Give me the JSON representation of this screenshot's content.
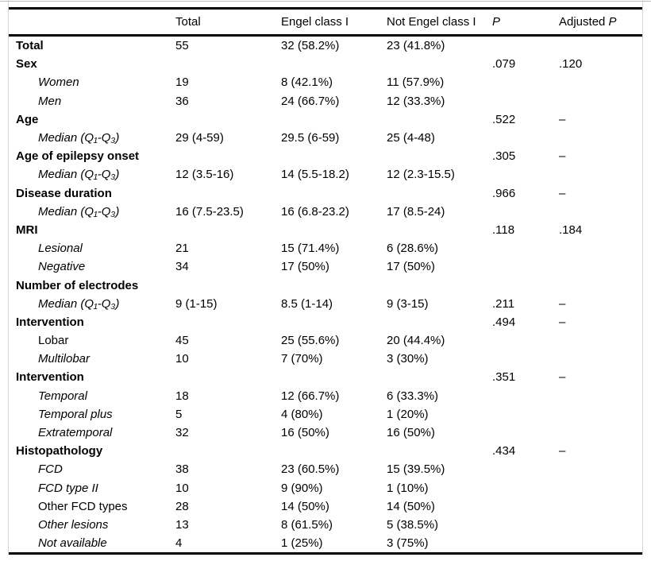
{
  "table": {
    "header": {
      "empty": "",
      "total": "Total",
      "engel": "Engel class I",
      "not_engel": "Not Engel class I",
      "p": "P",
      "adjusted_prefix": "Adjusted ",
      "adjusted_p": "P"
    },
    "rows": [
      {
        "label": "Total",
        "style": "bold",
        "total": "55",
        "engel": "32 (58.2%)",
        "not_engel": "23 (41.8%)",
        "p": "",
        "adj_p": ""
      },
      {
        "label": "Sex",
        "style": "bold",
        "total": "",
        "engel": "",
        "not_engel": "",
        "p": ".079",
        "adj_p": ".120"
      },
      {
        "label": "Women",
        "style": "italic",
        "total": "19",
        "engel": "8 (42.1%)",
        "not_engel": "11 (57.9%)",
        "p": "",
        "adj_p": ""
      },
      {
        "label": "Men",
        "style": "italic",
        "total": "36",
        "engel": "24 (66.7%)",
        "not_engel": "12 (33.3%)",
        "p": "",
        "adj_p": ""
      },
      {
        "label": "Age",
        "style": "bold",
        "total": "",
        "engel": "",
        "not_engel": "",
        "p": ".522",
        "adj_p": "–"
      },
      {
        "label": "Median (Q₁-Q₃)",
        "style": "italic",
        "total": "29 (4-59)",
        "engel": "29.5 (6-59)",
        "not_engel": "25 (4-48)",
        "p": "",
        "adj_p": ""
      },
      {
        "label": "Age of epilepsy onset",
        "style": "bold",
        "total": "",
        "engel": "",
        "not_engel": "",
        "p": ".305",
        "adj_p": "–"
      },
      {
        "label": "Median (Q₁-Q₃)",
        "style": "italic",
        "total": "12 (3.5-16)",
        "engel": "14 (5.5-18.2)",
        "not_engel": "12 (2.3-15.5)",
        "p": "",
        "adj_p": ""
      },
      {
        "label": "Disease duration",
        "style": "bold",
        "total": "",
        "engel": "",
        "not_engel": "",
        "p": ".966",
        "adj_p": "–"
      },
      {
        "label": "Median (Q₁-Q₃)",
        "style": "italic",
        "total": "16 (7.5-23.5)",
        "engel": "16 (6.8-23.2)",
        "not_engel": "17 (8.5-24)",
        "p": "",
        "adj_p": ""
      },
      {
        "label": "MRI",
        "style": "bold",
        "total": "",
        "engel": "",
        "not_engel": "",
        "p": ".118",
        "adj_p": ".184"
      },
      {
        "label": "Lesional",
        "style": "italic",
        "total": "21",
        "engel": "15 (71.4%)",
        "not_engel": "6 (28.6%)",
        "p": "",
        "adj_p": ""
      },
      {
        "label": "Negative",
        "style": "italic",
        "total": "34",
        "engel": "17 (50%)",
        "not_engel": "17 (50%)",
        "p": "",
        "adj_p": ""
      },
      {
        "label": "Number of electrodes",
        "style": "bold",
        "total": "",
        "engel": "",
        "not_engel": "",
        "p": "",
        "adj_p": ""
      },
      {
        "label": "Median (Q₁-Q₃)",
        "style": "italic",
        "total": "9 (1-15)",
        "engel": "8.5 (1-14)",
        "not_engel": "9 (3-15)",
        "p": ".211",
        "adj_p": "–"
      },
      {
        "label": "Intervention",
        "style": "bold",
        "total": "",
        "engel": "",
        "not_engel": "",
        "p": ".494",
        "adj_p": "–"
      },
      {
        "label": "Lobar",
        "style": "plain",
        "total": "45",
        "engel": "25 (55.6%)",
        "not_engel": "20 (44.4%)",
        "p": "",
        "adj_p": ""
      },
      {
        "label": "Multilobar",
        "style": "italic",
        "total": "10",
        "engel": "7 (70%)",
        "not_engel": "3 (30%)",
        "p": "",
        "adj_p": ""
      },
      {
        "label": "Intervention",
        "style": "bold",
        "total": "",
        "engel": "",
        "not_engel": "",
        "p": ".351",
        "adj_p": "–"
      },
      {
        "label": "Temporal",
        "style": "italic",
        "total": "18",
        "engel": "12 (66.7%)",
        "not_engel": "6 (33.3%)",
        "p": "",
        "adj_p": ""
      },
      {
        "label": "Temporal plus",
        "style": "italic",
        "total": "5",
        "engel": "4 (80%)",
        "not_engel": "1 (20%)",
        "p": "",
        "adj_p": ""
      },
      {
        "label": "Extratemporal",
        "style": "italic",
        "total": "32",
        "engel": "16 (50%)",
        "not_engel": "16 (50%)",
        "p": "",
        "adj_p": ""
      },
      {
        "label": "Histopathology",
        "style": "bold",
        "total": "",
        "engel": "",
        "not_engel": "",
        "p": ".434",
        "adj_p": "–"
      },
      {
        "label": "FCD",
        "style": "italic",
        "total": "38",
        "engel": "23 (60.5%)",
        "not_engel": "15 (39.5%)",
        "p": "",
        "adj_p": ""
      },
      {
        "label": "FCD type II",
        "style": "italic",
        "total": "10",
        "engel": "9 (90%)",
        "not_engel": "1 (10%)",
        "p": "",
        "adj_p": ""
      },
      {
        "label": "Other FCD types",
        "style": "plain",
        "total": "28",
        "engel": "14 (50%)",
        "not_engel": "14 (50%)",
        "p": "",
        "adj_p": ""
      },
      {
        "label": "Other lesions",
        "style": "italic",
        "total": "13",
        "engel": "8 (61.5%)",
        "not_engel": "5 (38.5%)",
        "p": "",
        "adj_p": ""
      },
      {
        "label": "Not available",
        "style": "italic",
        "total": "4",
        "engel": "1 (25%)",
        "not_engel": "3 (75%)",
        "p": "",
        "adj_p": ""
      }
    ]
  }
}
